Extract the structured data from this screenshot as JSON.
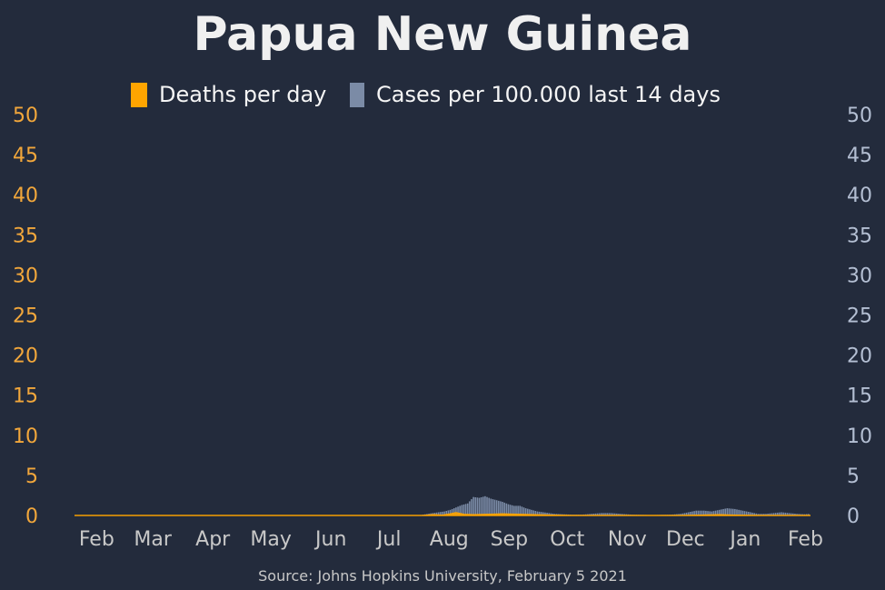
{
  "chart_data": {
    "type": "bar",
    "title": "Papua New Guinea",
    "source": "Source: Johns Hopkins University, February 5 2021",
    "legend_placement": "top-center",
    "grid": false,
    "colors": {
      "background": "#232b3c",
      "deaths": "#ffa500",
      "cases": "#7b8ba6",
      "left_axis": "#f2a73b",
      "right_axis": "#b4bfd3",
      "x_axis": "#c8c8c8"
    },
    "y_left": {
      "ylim": [
        0,
        50
      ],
      "ticks": [
        "0",
        "5",
        "10",
        "15",
        "20",
        "25",
        "30",
        "35",
        "40",
        "45",
        "50"
      ]
    },
    "y_right": {
      "ylim": [
        0,
        50
      ],
      "ticks": [
        "0",
        "5",
        "10",
        "15",
        "20",
        "25",
        "30",
        "35",
        "40",
        "45",
        "50"
      ]
    },
    "x_ticks": [
      "Feb",
      "Mar",
      "Apr",
      "May",
      "Jun",
      "Jul",
      "Aug",
      "Sep",
      "Oct",
      "Nov",
      "Dec",
      "Jan",
      "Feb"
    ],
    "series": [
      {
        "name": "Deaths per day",
        "type": "area",
        "axis": "left",
        "points": [
          [
            "2020-01-22",
            0
          ],
          [
            "2020-07-20",
            0
          ],
          [
            "2020-07-25",
            0.1
          ],
          [
            "2020-07-30",
            0.05
          ],
          [
            "2020-08-03",
            0.2
          ],
          [
            "2020-08-06",
            0.35
          ],
          [
            "2020-08-10",
            0.15
          ],
          [
            "2020-08-15",
            0.1
          ],
          [
            "2020-08-22",
            0.15
          ],
          [
            "2020-08-30",
            0.2
          ],
          [
            "2020-09-08",
            0.15
          ],
          [
            "2020-09-15",
            0.1
          ],
          [
            "2020-09-25",
            0.05
          ],
          [
            "2020-10-05",
            0
          ],
          [
            "2020-11-30",
            0
          ],
          [
            "2020-12-10",
            0.05
          ],
          [
            "2020-12-20",
            0.1
          ],
          [
            "2020-12-28",
            0.05
          ],
          [
            "2021-01-10",
            0
          ],
          [
            "2021-02-05",
            0
          ]
        ]
      },
      {
        "name": "Cases per 100.000 last 14 days",
        "type": "bar",
        "axis": "right",
        "points": [
          [
            "2020-07-20",
            0.1
          ],
          [
            "2020-07-25",
            0.3
          ],
          [
            "2020-07-28",
            0.4
          ],
          [
            "2020-07-31",
            0.5
          ],
          [
            "2020-08-03",
            0.7
          ],
          [
            "2020-08-06",
            1.0
          ],
          [
            "2020-08-09",
            1.3
          ],
          [
            "2020-08-12",
            1.5
          ],
          [
            "2020-08-15",
            2.3
          ],
          [
            "2020-08-18",
            2.2
          ],
          [
            "2020-08-21",
            2.4
          ],
          [
            "2020-08-24",
            2.1
          ],
          [
            "2020-08-27",
            1.9
          ],
          [
            "2020-08-30",
            1.7
          ],
          [
            "2020-09-02",
            1.4
          ],
          [
            "2020-09-05",
            1.2
          ],
          [
            "2020-09-08",
            1.2
          ],
          [
            "2020-09-11",
            0.9
          ],
          [
            "2020-09-14",
            0.7
          ],
          [
            "2020-09-17",
            0.5
          ],
          [
            "2020-09-20",
            0.4
          ],
          [
            "2020-09-23",
            0.3
          ],
          [
            "2020-09-26",
            0.2
          ],
          [
            "2020-09-30",
            0.15
          ],
          [
            "2020-10-05",
            0.1
          ],
          [
            "2020-10-10",
            0.1
          ],
          [
            "2020-10-15",
            0.2
          ],
          [
            "2020-10-20",
            0.3
          ],
          [
            "2020-10-25",
            0.3
          ],
          [
            "2020-10-30",
            0.2
          ],
          [
            "2020-11-05",
            0.1
          ],
          [
            "2020-11-15",
            0.05
          ],
          [
            "2020-11-25",
            0.1
          ],
          [
            "2020-11-30",
            0.2
          ],
          [
            "2020-12-04",
            0.4
          ],
          [
            "2020-12-08",
            0.6
          ],
          [
            "2020-12-12",
            0.6
          ],
          [
            "2020-12-16",
            0.5
          ],
          [
            "2020-12-20",
            0.7
          ],
          [
            "2020-12-24",
            0.9
          ],
          [
            "2020-12-28",
            0.8
          ],
          [
            "2021-01-01",
            0.6
          ],
          [
            "2021-01-05",
            0.4
          ],
          [
            "2021-01-09",
            0.2
          ],
          [
            "2021-01-13",
            0.2
          ],
          [
            "2021-01-17",
            0.3
          ],
          [
            "2021-01-21",
            0.4
          ],
          [
            "2021-01-25",
            0.3
          ],
          [
            "2021-01-29",
            0.2
          ],
          [
            "2021-02-02",
            0.15
          ],
          [
            "2021-02-05",
            0.2
          ]
        ]
      }
    ],
    "x_domain": [
      "2020-01-22",
      "2021-02-05"
    ]
  }
}
